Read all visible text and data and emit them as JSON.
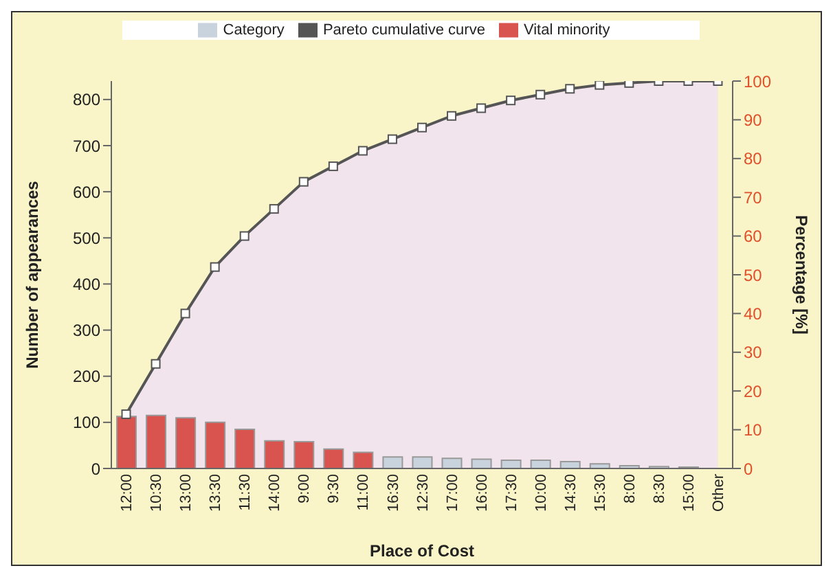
{
  "chart_data": {
    "type": "bar",
    "xlabel": "Place of Cost",
    "ylabel": "Number of appearances",
    "y2label": "Percentage [%]",
    "categories": [
      "12:00",
      "10:30",
      "13:00",
      "13:30",
      "11:30",
      "14:00",
      "9:00",
      "9:30",
      "11:00",
      "16:30",
      "12:30",
      "17:00",
      "16:00",
      "17:30",
      "10:00",
      "14:30",
      "15:30",
      "8:00",
      "8:30",
      "15:00",
      "Other"
    ],
    "series": [
      {
        "name": "Category",
        "color": "#c9d3de",
        "values": [
          null,
          null,
          null,
          null,
          null,
          null,
          null,
          null,
          null,
          25,
          25,
          22,
          20,
          18,
          18,
          15,
          10,
          6,
          4,
          3,
          null
        ]
      },
      {
        "name": "Vital minority",
        "color": "#d9534f",
        "values": [
          113,
          115,
          110,
          100,
          85,
          60,
          58,
          42,
          35,
          null,
          null,
          null,
          null,
          null,
          null,
          null,
          null,
          null,
          null,
          null,
          null
        ]
      },
      {
        "name": "Pareto cumulative curve",
        "type": "area",
        "axis": "y2",
        "color": "#555555",
        "values": [
          14,
          27,
          40,
          52,
          60,
          67,
          74,
          78,
          82,
          85,
          88,
          91,
          93,
          95,
          96.5,
          98,
          99,
          99.5,
          100,
          100,
          100
        ]
      }
    ],
    "stacked": true,
    "ylim": [
      0,
      840
    ],
    "yticks": [
      0,
      100,
      200,
      300,
      400,
      500,
      600,
      700,
      800
    ],
    "y2lim": [
      0,
      100
    ],
    "y2ticks": [
      0,
      10,
      20,
      30,
      40,
      50,
      60,
      70,
      80,
      90,
      100
    ],
    "legend": "top",
    "marker": "square",
    "line_style": "solid",
    "grid": false
  }
}
